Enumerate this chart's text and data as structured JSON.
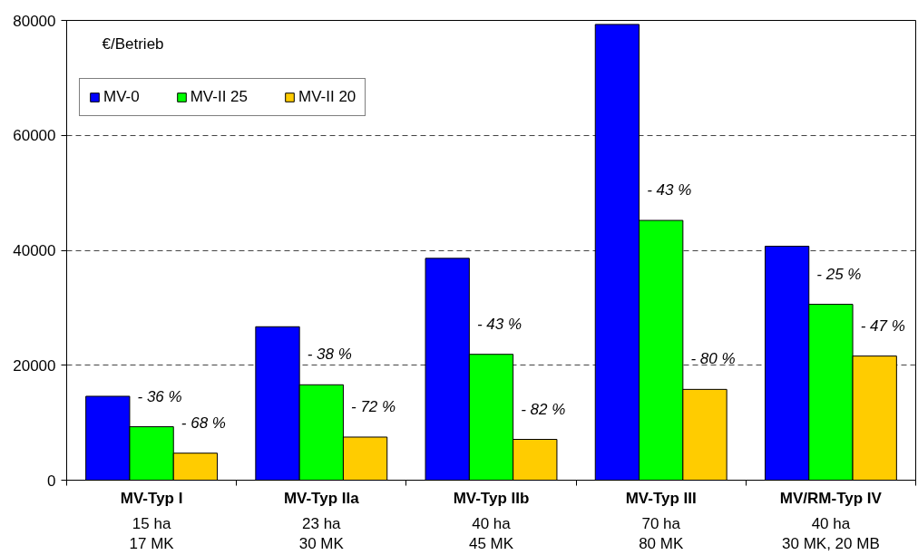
{
  "chart_data": {
    "type": "bar",
    "ylabel": "€/Betrieb",
    "categories": [
      "MV-Typ I\n15 ha\n17 MK",
      "MV-Typ IIa\n23 ha\n30 MK",
      "MV-Typ IIb\n40 ha\n45 MK",
      "MV-Typ III\n70 ha\n80 MK",
      "MV/RM-Typ IV\n40 ha\n30 MK, 20 MB"
    ],
    "series": [
      {
        "name": "MV-0",
        "color": "#0000ff",
        "values": [
          14600,
          26700,
          38600,
          79300,
          40700
        ]
      },
      {
        "name": "MV-II 25",
        "color": "#00ff00",
        "values": [
          9300,
          16600,
          21900,
          45200,
          30600
        ]
      },
      {
        "name": "MV-II 20",
        "color": "#ffcc00",
        "values": [
          4700,
          7500,
          7100,
          15800,
          21600
        ]
      }
    ],
    "annotations": [
      {
        "text": "- 36 %",
        "x": "MV-Typ I\n15 ha\n17 MK",
        "y": 9300
      },
      {
        "text": "- 38 %",
        "x": "MV-Typ IIa\n23 ha\n30 MK",
        "y": 16600
      },
      {
        "text": "- 43 %",
        "x": "MV-Typ IIb\n40 ha\n45 MK",
        "y": 21900
      },
      {
        "text": "- 43 %",
        "x": "MV-Typ III\n70 ha\n80 MK",
        "y": 45200
      },
      {
        "text": "- 25 %",
        "x": "MV/RM-Typ IV\n40 ha\n30 MK, 20 MB",
        "y": 30600
      },
      "- 68 %",
      "- 72 %",
      "- 82 %",
      "- 80 %",
      "- 47 %"
    ],
    "ylim": [
      0,
      80000
    ],
    "yticks": [
      0,
      20000,
      40000,
      60000,
      80000
    ],
    "grid": "y",
    "legend": "top left"
  }
}
